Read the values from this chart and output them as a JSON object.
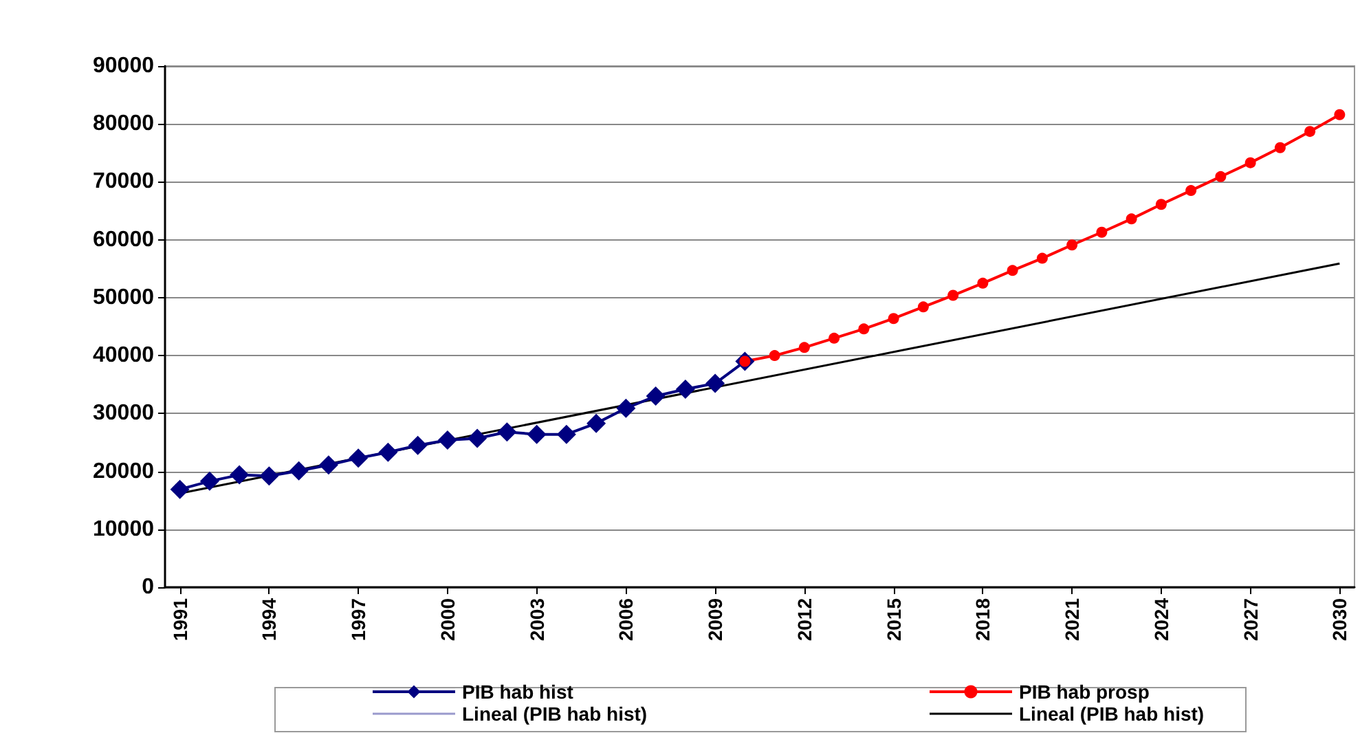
{
  "chart_data": {
    "type": "line",
    "ylim": [
      0,
      90000
    ],
    "yticks": [
      0,
      10000,
      20000,
      30000,
      40000,
      50000,
      60000,
      70000,
      80000,
      90000
    ],
    "xlim": [
      1990.5,
      2030.5
    ],
    "xticks": [
      1991,
      1994,
      1997,
      2000,
      2003,
      2006,
      2009,
      2012,
      2015,
      2018,
      2021,
      2024,
      2027,
      2030
    ],
    "grid": "y",
    "legend": "bottom",
    "series": [
      {
        "name": "PIB hab hist",
        "color": "#000080",
        "marker": "diamond",
        "x": [
          1991,
          1992,
          1993,
          1994,
          1995,
          1996,
          1997,
          1998,
          1999,
          2000,
          2001,
          2002,
          2003,
          2004,
          2005,
          2006,
          2007,
          2008,
          2009,
          2010
        ],
        "values": [
          16900,
          18300,
          19400,
          19200,
          20100,
          21100,
          22300,
          23300,
          24500,
          25400,
          25700,
          26800,
          26400,
          26400,
          28300,
          30900,
          33000,
          34200,
          35200,
          39000
        ]
      },
      {
        "name": "PIB hab prosp",
        "color": "#ff0000",
        "marker": "circle",
        "x": [
          2010,
          2011,
          2012,
          2013,
          2014,
          2015,
          2016,
          2017,
          2018,
          2019,
          2020,
          2021,
          2022,
          2023,
          2024,
          2025,
          2026,
          2027,
          2028,
          2029,
          2030
        ],
        "values": [
          39000,
          40000,
          41400,
          43000,
          44600,
          46400,
          48400,
          50400,
          52500,
          54700,
          56800,
          59100,
          61300,
          63600,
          66100,
          68500,
          70900,
          73300,
          75900,
          78700,
          81600
        ]
      },
      {
        "name": "Lineal (PIB hab hist)",
        "color": "#9999cc",
        "marker": "none"
      },
      {
        "name": "Lineal (PIB hab hist)",
        "color": "#000000",
        "marker": "none",
        "x": [
          1991,
          2030
        ],
        "values": [
          16200,
          55900
        ]
      }
    ]
  }
}
